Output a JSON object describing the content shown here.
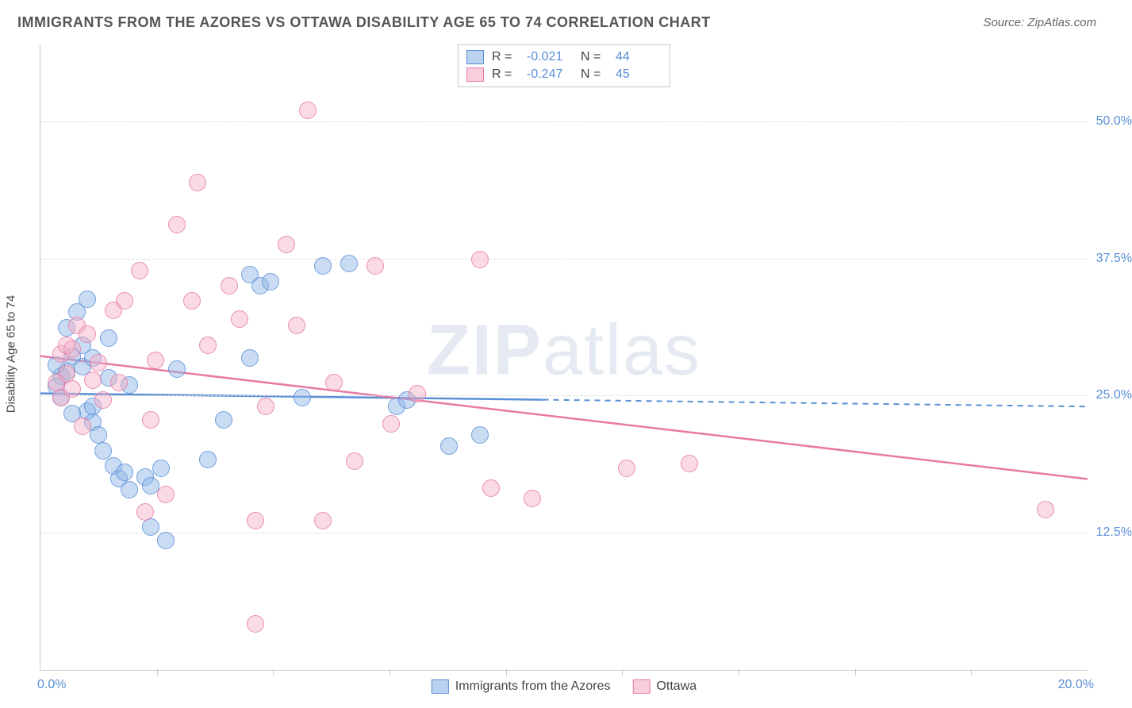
{
  "title": "IMMIGRANTS FROM THE AZORES VS OTTAWA DISABILITY AGE 65 TO 74 CORRELATION CHART",
  "source": "Source: ZipAtlas.com",
  "watermark": "ZIPatlas",
  "chart": {
    "type": "scatter",
    "y_axis_title": "Disability Age 65 to 74",
    "xlim": [
      0,
      20
    ],
    "ylim": [
      0,
      57
    ],
    "x_ticks_count": 9,
    "x_labels": {
      "min": "0.0%",
      "max": "20.0%"
    },
    "y_gridlines": [
      {
        "value": 12.5,
        "label": "12.5%"
      },
      {
        "value": 25.0,
        "label": "25.0%"
      },
      {
        "value": 37.5,
        "label": "37.5%"
      },
      {
        "value": 50.0,
        "label": "50.0%"
      }
    ],
    "grid_color": "#dcdcdc",
    "axis_color": "#c9c9c9",
    "label_color": "#5a8fd6",
    "background_color": "#ffffff",
    "marker_size": 20,
    "series": [
      {
        "name": "Immigrants from the Azores",
        "color_key": "blue",
        "fill": "rgba(138,180,230,0.55)",
        "stroke": "#5a8fd6",
        "R": "-0.021",
        "N": "44",
        "trend": {
          "y_at_x0": 25.2,
          "y_at_x20": 24.0,
          "solid_until_x": 9.6
        },
        "points": [
          [
            0.9,
            33.8
          ],
          [
            0.7,
            32.6
          ],
          [
            0.5,
            31.2
          ],
          [
            0.4,
            26.8
          ],
          [
            0.3,
            25.8
          ],
          [
            0.5,
            27.2
          ],
          [
            0.4,
            24.8
          ],
          [
            0.8,
            27.6
          ],
          [
            0.9,
            23.6
          ],
          [
            1.0,
            22.6
          ],
          [
            1.0,
            24.0
          ],
          [
            1.1,
            21.4
          ],
          [
            1.2,
            20.0
          ],
          [
            1.4,
            18.6
          ],
          [
            1.5,
            17.4
          ],
          [
            1.6,
            18.0
          ],
          [
            1.7,
            16.4
          ],
          [
            2.0,
            17.6
          ],
          [
            2.1,
            13.0
          ],
          [
            2.3,
            18.4
          ],
          [
            2.4,
            11.8
          ],
          [
            3.2,
            19.2
          ],
          [
            4.0,
            36.0
          ],
          [
            4.2,
            35.0
          ],
          [
            4.4,
            35.4
          ],
          [
            5.9,
            37.0
          ],
          [
            6.8,
            24.0
          ],
          [
            7.8,
            20.4
          ],
          [
            8.4,
            21.4
          ],
          [
            1.3,
            26.6
          ],
          [
            0.6,
            28.6
          ],
          [
            0.3,
            27.8
          ],
          [
            0.6,
            23.4
          ],
          [
            0.8,
            29.6
          ],
          [
            1.0,
            28.4
          ],
          [
            1.3,
            30.2
          ],
          [
            1.7,
            26.0
          ],
          [
            2.1,
            16.8
          ],
          [
            2.6,
            27.4
          ],
          [
            3.5,
            22.8
          ],
          [
            4.0,
            28.4
          ],
          [
            5.0,
            24.8
          ],
          [
            5.4,
            36.8
          ],
          [
            7.0,
            24.6
          ]
        ]
      },
      {
        "name": "Ottawa",
        "color_key": "pink",
        "fill": "rgba(244,174,198,0.55)",
        "stroke": "#e77ba4",
        "R": "-0.247",
        "N": "45",
        "trend": {
          "y_at_x0": 28.6,
          "y_at_x20": 17.4,
          "solid_until_x": 20
        },
        "points": [
          [
            0.4,
            28.8
          ],
          [
            0.5,
            29.6
          ],
          [
            0.5,
            27.0
          ],
          [
            0.6,
            29.2
          ],
          [
            0.7,
            31.4
          ],
          [
            0.9,
            30.6
          ],
          [
            1.0,
            26.4
          ],
          [
            1.1,
            28.0
          ],
          [
            1.2,
            24.6
          ],
          [
            1.4,
            32.8
          ],
          [
            1.5,
            26.2
          ],
          [
            1.6,
            33.6
          ],
          [
            1.9,
            36.4
          ],
          [
            2.1,
            22.8
          ],
          [
            2.2,
            28.2
          ],
          [
            2.4,
            16.0
          ],
          [
            2.6,
            40.6
          ],
          [
            2.9,
            33.6
          ],
          [
            3.0,
            44.4
          ],
          [
            3.2,
            29.6
          ],
          [
            3.6,
            35.0
          ],
          [
            3.8,
            32.0
          ],
          [
            4.1,
            13.6
          ],
          [
            4.3,
            24.0
          ],
          [
            4.7,
            38.8
          ],
          [
            4.9,
            31.4
          ],
          [
            5.1,
            51.0
          ],
          [
            5.4,
            13.6
          ],
          [
            5.6,
            26.2
          ],
          [
            6.0,
            19.0
          ],
          [
            6.4,
            36.8
          ],
          [
            6.7,
            22.4
          ],
          [
            7.2,
            25.2
          ],
          [
            8.4,
            37.4
          ],
          [
            8.6,
            16.6
          ],
          [
            9.4,
            15.6
          ],
          [
            11.2,
            18.4
          ],
          [
            12.4,
            18.8
          ],
          [
            19.2,
            14.6
          ],
          [
            0.3,
            26.2
          ],
          [
            0.4,
            24.8
          ],
          [
            0.6,
            25.6
          ],
          [
            0.8,
            22.2
          ],
          [
            4.1,
            4.2
          ],
          [
            2.0,
            14.4
          ]
        ]
      }
    ],
    "legend_bottom": [
      "Immigrants from the Azores",
      "Ottawa"
    ]
  }
}
